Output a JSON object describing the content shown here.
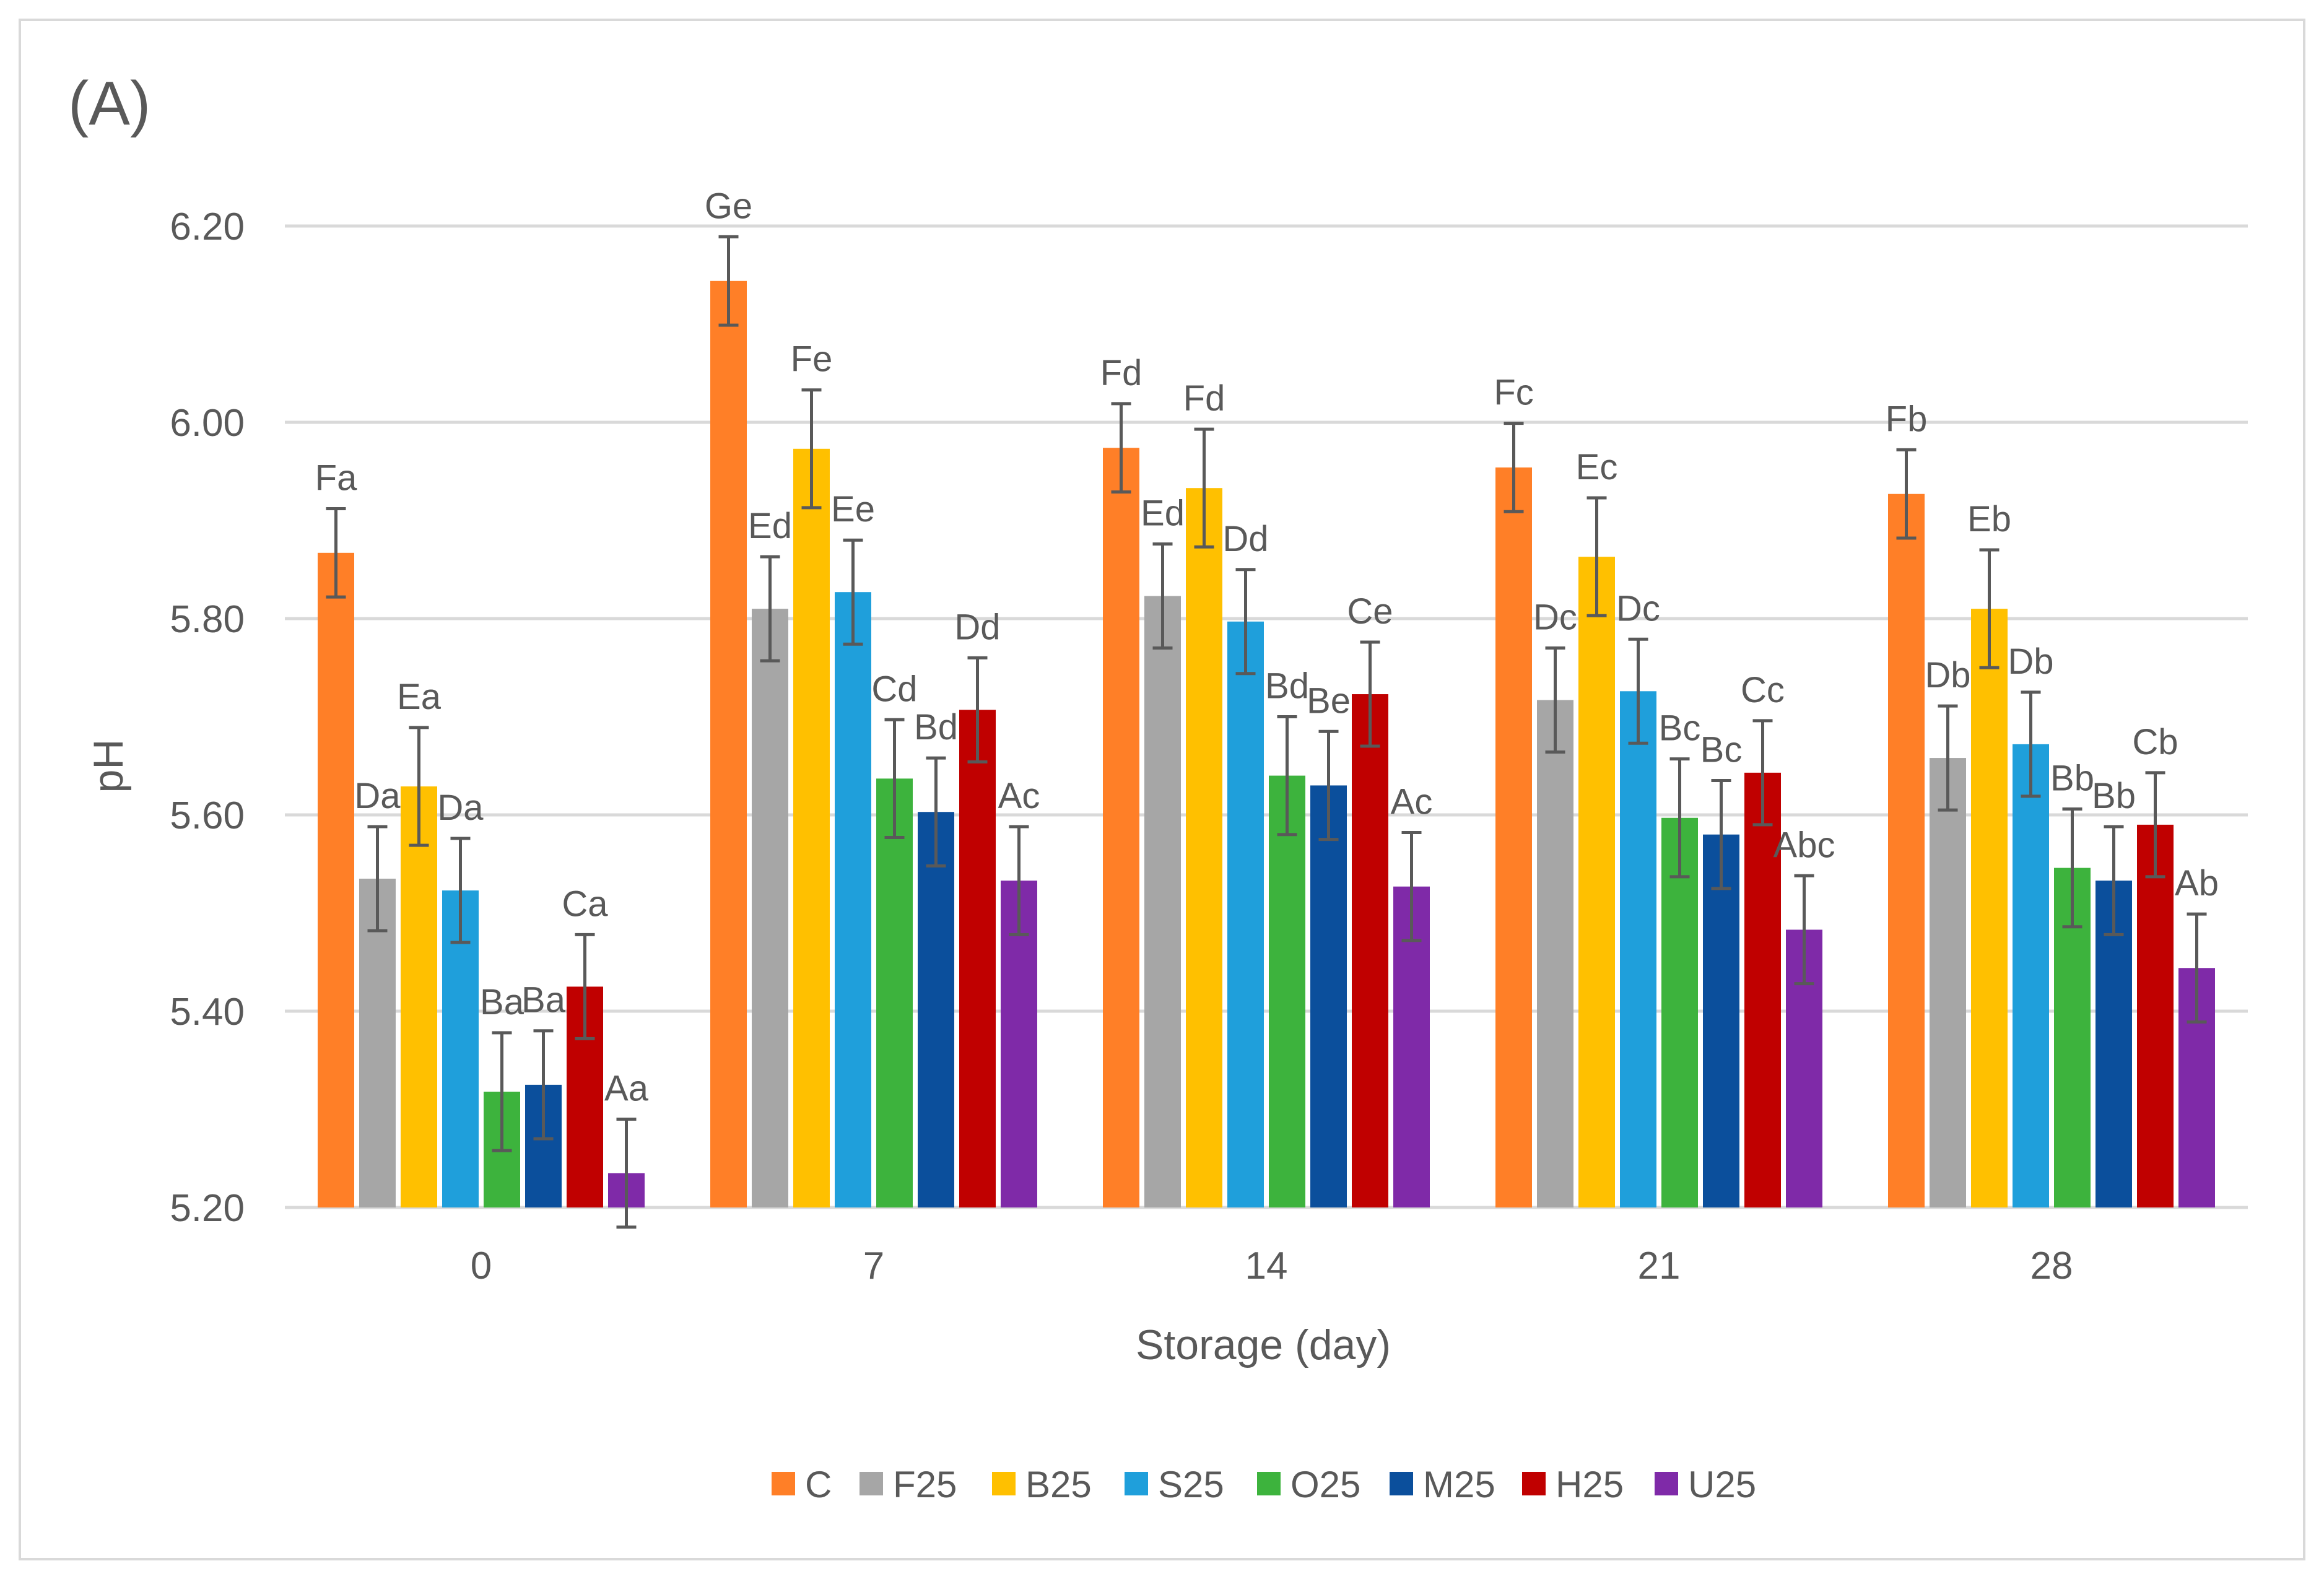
{
  "panel_label": "(A)",
  "chart_data": {
    "type": "bar",
    "title": "",
    "xlabel": "Storage (day)",
    "ylabel": "pH",
    "ylim": [
      5.2,
      6.2
    ],
    "yticks": [
      "5.20",
      "5.40",
      "5.60",
      "5.80",
      "6.00",
      "6.20"
    ],
    "categories": [
      "0",
      "7",
      "14",
      "21",
      "28"
    ],
    "grid": true,
    "legend_position": "bottom",
    "series": [
      {
        "name": "C",
        "color": "#FF7F27",
        "values": [
          5.867,
          6.144,
          5.974,
          5.954,
          5.927
        ],
        "errors": [
          0.045,
          0.045,
          0.045,
          0.045,
          0.045
        ],
        "labels": [
          "Fa",
          "Ge",
          "Fd",
          "Fc",
          "Fb"
        ]
      },
      {
        "name": "F25",
        "color": "#A6A6A6",
        "values": [
          5.535,
          5.81,
          5.823,
          5.717,
          5.658
        ],
        "errors": [
          0.053,
          0.053,
          0.053,
          0.053,
          0.053
        ],
        "labels": [
          "Da",
          "Ed",
          "Ed",
          "Dc",
          "Db"
        ]
      },
      {
        "name": "B25",
        "color": "#FFC000",
        "values": [
          5.629,
          5.973,
          5.933,
          5.863,
          5.81
        ],
        "errors": [
          0.06,
          0.06,
          0.06,
          0.06,
          0.06
        ],
        "labels": [
          "Ea",
          "Fe",
          "Fd",
          "Ec",
          "Eb"
        ]
      },
      {
        "name": "S25",
        "color": "#1F9FDB",
        "values": [
          5.523,
          5.827,
          5.797,
          5.726,
          5.672
        ],
        "errors": [
          0.053,
          0.053,
          0.053,
          0.053,
          0.053
        ],
        "labels": [
          "Da",
          "Ee",
          "Dd",
          "Dc",
          "Db"
        ]
      },
      {
        "name": "O25",
        "color": "#3DB33D",
        "values": [
          5.318,
          5.637,
          5.64,
          5.597,
          5.546
        ],
        "errors": [
          0.06,
          0.06,
          0.06,
          0.06,
          0.06
        ],
        "labels": [
          "Ba",
          "Cd",
          "Bd",
          "Bc",
          "Bb"
        ]
      },
      {
        "name": "M25",
        "color": "#0B4F9C",
        "values": [
          5.325,
          5.603,
          5.63,
          5.58,
          5.533
        ],
        "errors": [
          0.055,
          0.055,
          0.055,
          0.055,
          0.055
        ],
        "labels": [
          "Ba",
          "Bd",
          "Be",
          "Bc",
          "Bb"
        ]
      },
      {
        "name": "H25",
        "color": "#C00000",
        "values": [
          5.425,
          5.707,
          5.723,
          5.643,
          5.59
        ],
        "errors": [
          0.053,
          0.053,
          0.053,
          0.053,
          0.053
        ],
        "labels": [
          "Ca",
          "Dd",
          "Ce",
          "Cc",
          "Cb"
        ]
      },
      {
        "name": "U25",
        "color": "#7F2AA8",
        "values": [
          5.235,
          5.533,
          5.527,
          5.483,
          5.444
        ],
        "errors": [
          0.055,
          0.055,
          0.055,
          0.055,
          0.055
        ],
        "labels": [
          "Aa",
          "Ac",
          "Ac",
          "Abc",
          "Ab"
        ]
      }
    ]
  }
}
